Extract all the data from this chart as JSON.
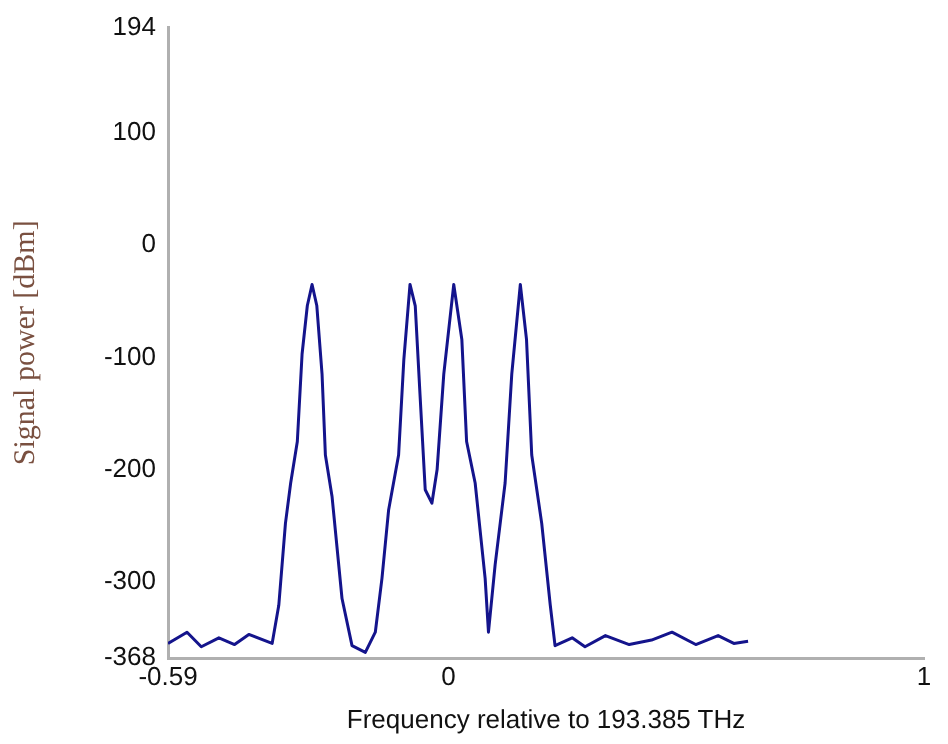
{
  "chart_data": {
    "type": "line",
    "xlabel": "Frequency relative to 193.385 THz",
    "ylabel": "Signal power [dBm]",
    "xlim": [
      -0.59,
      1
    ],
    "xticks": [
      -0.59,
      0,
      1
    ],
    "ylim": [
      -368,
      194
    ],
    "yticks": [
      194,
      100,
      0,
      -100,
      -200,
      -300,
      -368
    ],
    "grid": false,
    "legend": false,
    "marker": "none",
    "line_style": "solid",
    "series": [
      {
        "color": "#14148c",
        "x": [
          -0.59,
          -0.55,
          -0.52,
          -0.483,
          -0.45,
          -0.42,
          -0.371,
          -0.357,
          -0.343,
          -0.332,
          -0.318,
          -0.308,
          -0.297,
          -0.287,
          -0.277,
          -0.266,
          -0.259,
          -0.245,
          -0.224,
          -0.203,
          -0.175,
          -0.154,
          -0.14,
          -0.126,
          -0.105,
          -0.094,
          -0.081,
          -0.07,
          -0.06,
          -0.049,
          -0.035,
          -0.024,
          -0.01,
          0.011,
          0.028,
          0.038,
          0.056,
          0.077,
          0.084,
          0.098,
          0.119,
          0.133,
          0.151,
          0.164,
          0.175,
          0.196,
          0.214,
          0.224,
          0.26,
          0.287,
          0.33,
          0.38,
          0.427,
          0.47,
          0.52,
          0.567,
          0.6,
          0.63
        ],
        "values": [
          -355,
          -345,
          -358,
          -350,
          -356,
          -347,
          -355,
          -321,
          -248,
          -212,
          -175,
          -97,
          -54,
          -35,
          -54,
          -115,
          -187,
          -224,
          -315,
          -357,
          -363,
          -345,
          -297,
          -236,
          -187,
          -102,
          -35,
          -54,
          -133,
          -218,
          -230,
          -200,
          -115,
          -35,
          -84,
          -175,
          -212,
          -297,
          -345,
          -285,
          -212,
          -115,
          -35,
          -84,
          -187,
          -248,
          -321,
          -357,
          -350,
          -358,
          -348,
          -356,
          -352,
          -345,
          -356,
          -348,
          -355,
          -353
        ]
      }
    ]
  }
}
